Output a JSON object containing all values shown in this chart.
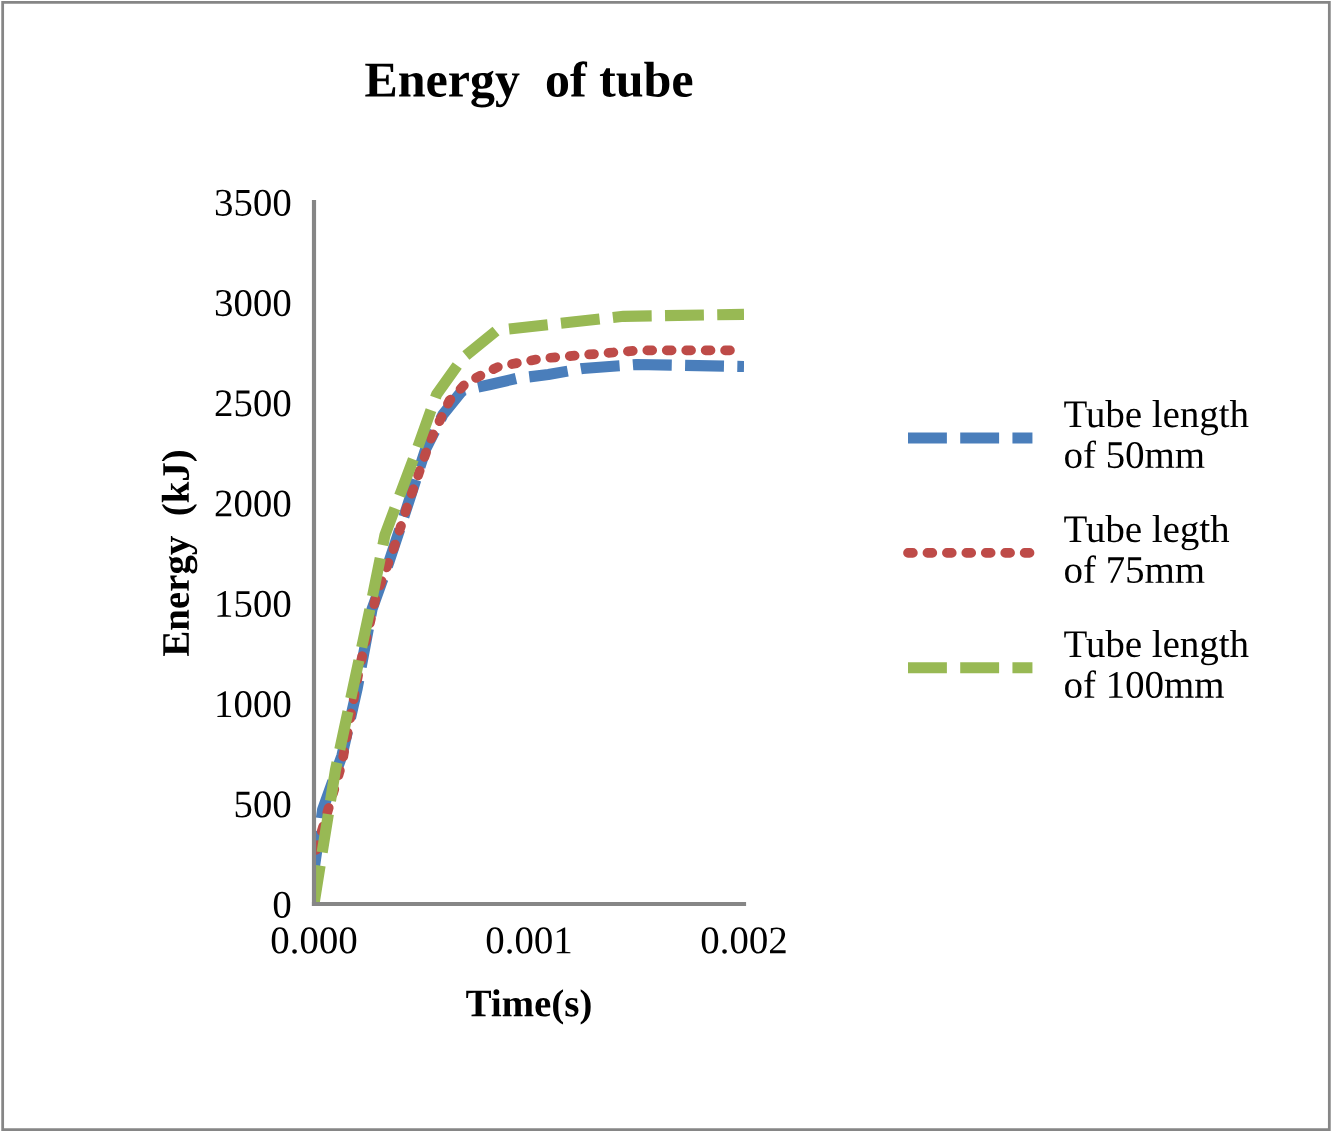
{
  "chart_data": {
    "type": "line",
    "title": "Energy  of tube",
    "xlabel": "Time(s)",
    "ylabel": "Energy  (kJ)",
    "xlim": [
      0,
      0.002
    ],
    "xticks": [
      {
        "value": 0,
        "label": "0.000"
      },
      {
        "value": 0.001,
        "label": "0.001"
      },
      {
        "value": 0.002,
        "label": "0.002"
      }
    ],
    "ylim": [
      0,
      3500
    ],
    "yticks": [
      0,
      500,
      1000,
      1500,
      2000,
      2500,
      3000,
      3500
    ],
    "grid": false,
    "legend": "right",
    "marker": "none",
    "series": [
      {
        "name": "Tube length\nof 50mm",
        "color": "#4a7ebb",
        "line_style": "dashed",
        "x": [
          0,
          4e-05,
          0.00013,
          0.0002,
          0.00027,
          0.00035,
          0.00043,
          0.00052,
          0.0006,
          0.00069,
          0.00082,
          0.00094,
          0.00109,
          0.00125,
          0.0015,
          0.002
        ],
        "values": [
          170,
          470,
          740,
          1070,
          1470,
          1710,
          1970,
          2270,
          2440,
          2560,
          2590,
          2620,
          2640,
          2670,
          2690,
          2680
        ]
      },
      {
        "name": "Tube legth\nof 75mm",
        "color": "#be4b48",
        "line_style": "dotted",
        "x": [
          1e-05,
          0.00013,
          0.00021,
          0.00029,
          0.00037,
          0.00043,
          0.00054,
          0.00063,
          0.00071,
          0.00086,
          0.00106,
          0.00128,
          0.00151,
          0.002
        ],
        "values": [
          270,
          700,
          1170,
          1540,
          1770,
          1970,
          2310,
          2510,
          2600,
          2680,
          2720,
          2740,
          2760,
          2760
        ]
      },
      {
        "name": "Tube length\nof 100mm",
        "color": "#98b954",
        "line_style": "dashed",
        "x": [
          0,
          4e-05,
          0.0001,
          0.00018,
          0.00026,
          0.00033,
          0.00041,
          0.00047,
          0.00057,
          0.00069,
          0.00085,
          0.00119,
          0.00144,
          0.002
        ],
        "values": [
          0,
          270,
          670,
          1070,
          1470,
          1840,
          2070,
          2240,
          2540,
          2720,
          2860,
          2900,
          2930,
          2940
        ]
      }
    ]
  }
}
